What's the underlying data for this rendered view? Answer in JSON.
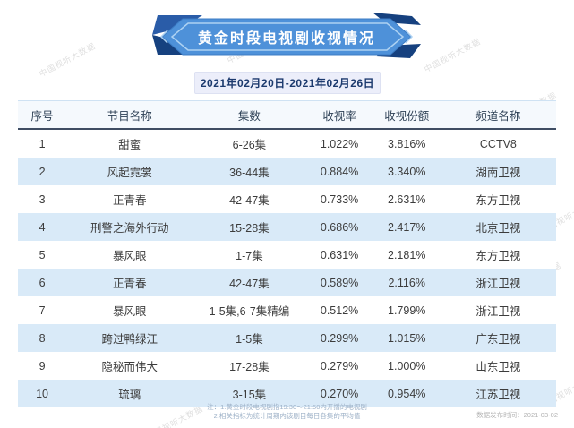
{
  "banner": {
    "title": "黄金时段电视剧收视情况"
  },
  "date_range": "2021年02月20日-2021年02月26日",
  "chart_data": {
    "type": "table",
    "title": "黄金时段电视剧收视情况",
    "subtitle": "2021年02月20日-2021年02月26日",
    "columns": [
      "序号",
      "节目名称",
      "集数",
      "收视率",
      "收视份额",
      "频道名称"
    ],
    "rows": [
      {
        "no": "1",
        "name": "甜蜜",
        "episodes": "6-26集",
        "rating": "1.022%",
        "share": "3.816%",
        "channel": "CCTV8"
      },
      {
        "no": "2",
        "name": "风起霓裳",
        "episodes": "36-44集",
        "rating": "0.884%",
        "share": "3.340%",
        "channel": "湖南卫视"
      },
      {
        "no": "3",
        "name": "正青春",
        "episodes": "42-47集",
        "rating": "0.733%",
        "share": "2.631%",
        "channel": "东方卫视"
      },
      {
        "no": "4",
        "name": "刑警之海外行动",
        "episodes": "15-28集",
        "rating": "0.686%",
        "share": "2.417%",
        "channel": "北京卫视"
      },
      {
        "no": "5",
        "name": "暴风眼",
        "episodes": "1-7集",
        "rating": "0.631%",
        "share": "2.181%",
        "channel": "东方卫视"
      },
      {
        "no": "6",
        "name": "正青春",
        "episodes": "42-47集",
        "rating": "0.589%",
        "share": "2.116%",
        "channel": "浙江卫视"
      },
      {
        "no": "7",
        "name": "暴风眼",
        "episodes": "1-5集,6-7集精编",
        "rating": "0.512%",
        "share": "1.799%",
        "channel": "浙江卫视"
      },
      {
        "no": "8",
        "name": "跨过鸭绿江",
        "episodes": "1-5集",
        "rating": "0.299%",
        "share": "1.015%",
        "channel": "广东卫视"
      },
      {
        "no": "9",
        "name": "隐秘而伟大",
        "episodes": "17-28集",
        "rating": "0.279%",
        "share": "1.000%",
        "channel": "山东卫视"
      },
      {
        "no": "10",
        "name": "琉璃",
        "episodes": "3-15集",
        "rating": "0.270%",
        "share": "0.954%",
        "channel": "江苏卫视"
      }
    ]
  },
  "notes": [
    "注：1.黄金时段电视剧指19:30～21:50内开播的电视剧",
    "2.相关指标为统计周期内该剧目每日各集的平均值"
  ],
  "publish_info": "数据发布时间：2021-03-02",
  "watermark_text": "中国视听大数据",
  "colors": {
    "banner_blue": "#4e91d9",
    "banner_dark_fold": "#1c4e9a",
    "banner_outline": "#aed2f2",
    "row_alt": "#d9eaf8",
    "header_rule": "#3f4d63",
    "date_box_bg": "#eceefa",
    "note_text": "#9db1c7"
  }
}
